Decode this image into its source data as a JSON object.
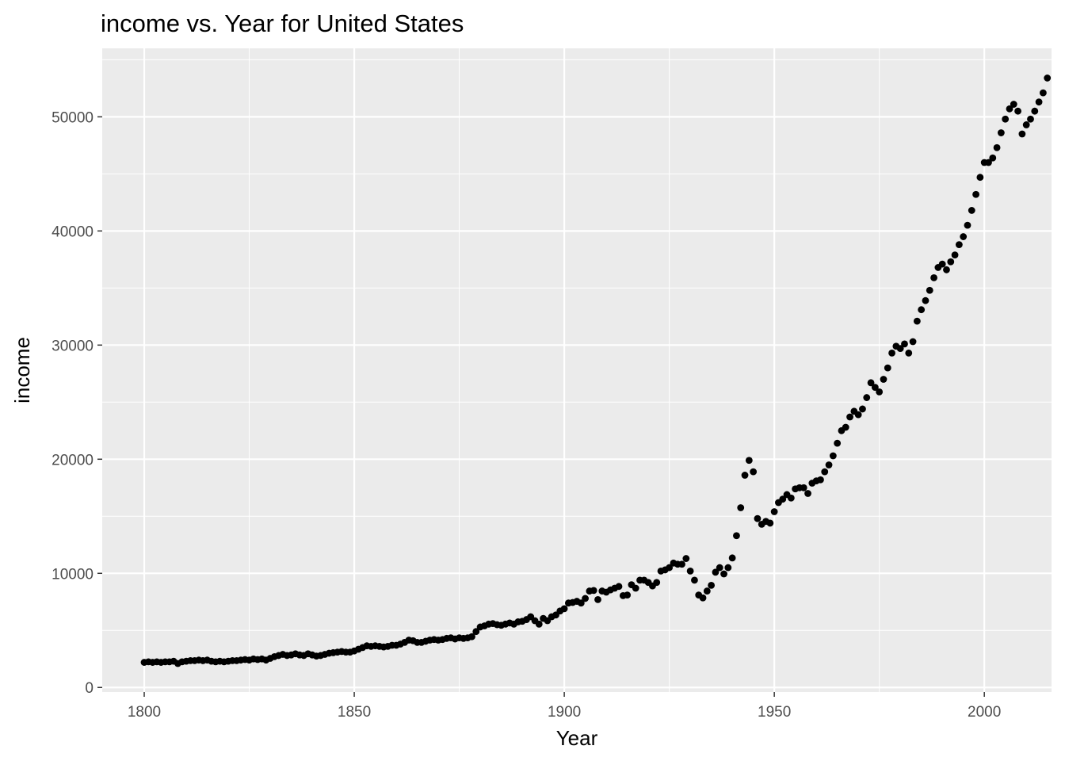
{
  "chart_data": {
    "type": "scatter",
    "title": "income vs. Year for United States",
    "xlabel": "Year",
    "ylabel": "income",
    "xlim": [
      1790,
      2016
    ],
    "ylim": [
      -400,
      56000
    ],
    "x_ticks": [
      1800,
      1850,
      1900,
      1950,
      2000
    ],
    "x_tick_labels": [
      "1800",
      "1850",
      "1900",
      "1950",
      "2000"
    ],
    "y_ticks": [
      0,
      10000,
      20000,
      30000,
      40000,
      50000
    ],
    "y_tick_labels": [
      "0",
      "10000",
      "20000",
      "30000",
      "40000",
      "50000"
    ],
    "grid": true,
    "legend": "none",
    "colors": {
      "panel": "#ebebeb",
      "grid": "#ffffff",
      "point": "#000000"
    },
    "series": [
      {
        "points": [
          [
            1800,
            2200
          ],
          [
            1801,
            2250
          ],
          [
            1802,
            2200
          ],
          [
            1803,
            2250
          ],
          [
            1804,
            2200
          ],
          [
            1805,
            2250
          ],
          [
            1806,
            2250
          ],
          [
            1807,
            2300
          ],
          [
            1808,
            2100
          ],
          [
            1809,
            2250
          ],
          [
            1810,
            2300
          ],
          [
            1811,
            2350
          ],
          [
            1812,
            2350
          ],
          [
            1813,
            2400
          ],
          [
            1814,
            2350
          ],
          [
            1815,
            2400
          ],
          [
            1816,
            2300
          ],
          [
            1817,
            2250
          ],
          [
            1818,
            2300
          ],
          [
            1819,
            2250
          ],
          [
            1820,
            2300
          ],
          [
            1821,
            2350
          ],
          [
            1822,
            2350
          ],
          [
            1823,
            2400
          ],
          [
            1824,
            2450
          ],
          [
            1825,
            2400
          ],
          [
            1826,
            2500
          ],
          [
            1827,
            2450
          ],
          [
            1828,
            2500
          ],
          [
            1829,
            2400
          ],
          [
            1830,
            2550
          ],
          [
            1831,
            2700
          ],
          [
            1832,
            2800
          ],
          [
            1833,
            2900
          ],
          [
            1834,
            2800
          ],
          [
            1835,
            2850
          ],
          [
            1836,
            2950
          ],
          [
            1837,
            2850
          ],
          [
            1838,
            2800
          ],
          [
            1839,
            2950
          ],
          [
            1840,
            2850
          ],
          [
            1841,
            2750
          ],
          [
            1842,
            2800
          ],
          [
            1843,
            2900
          ],
          [
            1844,
            3000
          ],
          [
            1845,
            3050
          ],
          [
            1846,
            3100
          ],
          [
            1847,
            3150
          ],
          [
            1848,
            3100
          ],
          [
            1849,
            3100
          ],
          [
            1850,
            3200
          ],
          [
            1851,
            3350
          ],
          [
            1852,
            3500
          ],
          [
            1853,
            3650
          ],
          [
            1854,
            3600
          ],
          [
            1855,
            3650
          ],
          [
            1856,
            3600
          ],
          [
            1857,
            3550
          ],
          [
            1858,
            3600
          ],
          [
            1859,
            3700
          ],
          [
            1860,
            3700
          ],
          [
            1861,
            3800
          ],
          [
            1862,
            3950
          ],
          [
            1863,
            4150
          ],
          [
            1864,
            4100
          ],
          [
            1865,
            3950
          ],
          [
            1866,
            3950
          ],
          [
            1867,
            4050
          ],
          [
            1868,
            4150
          ],
          [
            1869,
            4200
          ],
          [
            1870,
            4150
          ],
          [
            1871,
            4200
          ],
          [
            1872,
            4300
          ],
          [
            1873,
            4350
          ],
          [
            1874,
            4250
          ],
          [
            1875,
            4350
          ],
          [
            1876,
            4300
          ],
          [
            1877,
            4350
          ],
          [
            1878,
            4450
          ],
          [
            1879,
            4900
          ],
          [
            1880,
            5300
          ],
          [
            1881,
            5400
          ],
          [
            1882,
            5550
          ],
          [
            1883,
            5600
          ],
          [
            1884,
            5500
          ],
          [
            1885,
            5450
          ],
          [
            1886,
            5550
          ],
          [
            1887,
            5650
          ],
          [
            1888,
            5550
          ],
          [
            1889,
            5750
          ],
          [
            1890,
            5800
          ],
          [
            1891,
            5950
          ],
          [
            1892,
            6200
          ],
          [
            1893,
            5850
          ],
          [
            1894,
            5550
          ],
          [
            1895,
            6050
          ],
          [
            1896,
            5850
          ],
          [
            1897,
            6200
          ],
          [
            1898,
            6350
          ],
          [
            1899,
            6700
          ],
          [
            1900,
            6900
          ],
          [
            1901,
            7400
          ],
          [
            1902,
            7450
          ],
          [
            1903,
            7550
          ],
          [
            1904,
            7400
          ],
          [
            1905,
            7800
          ],
          [
            1906,
            8450
          ],
          [
            1907,
            8500
          ],
          [
            1908,
            7700
          ],
          [
            1909,
            8450
          ],
          [
            1910,
            8350
          ],
          [
            1911,
            8550
          ],
          [
            1912,
            8700
          ],
          [
            1913,
            8850
          ],
          [
            1914,
            8050
          ],
          [
            1915,
            8100
          ],
          [
            1916,
            9000
          ],
          [
            1917,
            8700
          ],
          [
            1918,
            9400
          ],
          [
            1919,
            9400
          ],
          [
            1920,
            9200
          ],
          [
            1921,
            8900
          ],
          [
            1922,
            9200
          ],
          [
            1923,
            10200
          ],
          [
            1924,
            10300
          ],
          [
            1925,
            10500
          ],
          [
            1926,
            10900
          ],
          [
            1927,
            10800
          ],
          [
            1928,
            10800
          ],
          [
            1929,
            11300
          ],
          [
            1930,
            10200
          ],
          [
            1931,
            9400
          ],
          [
            1932,
            8100
          ],
          [
            1933,
            7850
          ],
          [
            1934,
            8450
          ],
          [
            1935,
            8950
          ],
          [
            1936,
            10100
          ],
          [
            1937,
            10500
          ],
          [
            1938,
            9950
          ],
          [
            1939,
            10500
          ],
          [
            1940,
            11350
          ],
          [
            1941,
            13300
          ],
          [
            1942,
            15750
          ],
          [
            1943,
            18600
          ],
          [
            1944,
            19900
          ],
          [
            1945,
            18900
          ],
          [
            1946,
            14800
          ],
          [
            1947,
            14300
          ],
          [
            1948,
            14550
          ],
          [
            1949,
            14400
          ],
          [
            1950,
            15400
          ],
          [
            1951,
            16200
          ],
          [
            1952,
            16500
          ],
          [
            1953,
            16900
          ],
          [
            1954,
            16600
          ],
          [
            1955,
            17400
          ],
          [
            1956,
            17500
          ],
          [
            1957,
            17500
          ],
          [
            1958,
            17000
          ],
          [
            1959,
            17900
          ],
          [
            1960,
            18100
          ],
          [
            1961,
            18200
          ],
          [
            1962,
            18900
          ],
          [
            1963,
            19500
          ],
          [
            1964,
            20300
          ],
          [
            1965,
            21400
          ],
          [
            1966,
            22500
          ],
          [
            1967,
            22800
          ],
          [
            1968,
            23700
          ],
          [
            1969,
            24200
          ],
          [
            1970,
            23900
          ],
          [
            1971,
            24400
          ],
          [
            1972,
            25400
          ],
          [
            1973,
            26700
          ],
          [
            1974,
            26300
          ],
          [
            1975,
            25900
          ],
          [
            1976,
            27000
          ],
          [
            1977,
            28000
          ],
          [
            1978,
            29300
          ],
          [
            1979,
            29900
          ],
          [
            1980,
            29700
          ],
          [
            1981,
            30100
          ],
          [
            1982,
            29300
          ],
          [
            1983,
            30300
          ],
          [
            1984,
            32100
          ],
          [
            1985,
            33100
          ],
          [
            1986,
            33900
          ],
          [
            1987,
            34800
          ],
          [
            1988,
            35900
          ],
          [
            1989,
            36800
          ],
          [
            1990,
            37100
          ],
          [
            1991,
            36600
          ],
          [
            1992,
            37300
          ],
          [
            1993,
            37900
          ],
          [
            1994,
            38800
          ],
          [
            1995,
            39500
          ],
          [
            1996,
            40500
          ],
          [
            1997,
            41800
          ],
          [
            1998,
            43200
          ],
          [
            1999,
            44700
          ],
          [
            2000,
            46000
          ],
          [
            2001,
            46000
          ],
          [
            2002,
            46400
          ],
          [
            2003,
            47300
          ],
          [
            2004,
            48600
          ],
          [
            2005,
            49800
          ],
          [
            2006,
            50700
          ],
          [
            2007,
            51100
          ],
          [
            2008,
            50500
          ],
          [
            2009,
            48500
          ],
          [
            2010,
            49300
          ],
          [
            2011,
            49800
          ],
          [
            2012,
            50500
          ],
          [
            2013,
            51300
          ],
          [
            2014,
            52100
          ],
          [
            2015,
            53400
          ]
        ]
      }
    ]
  }
}
